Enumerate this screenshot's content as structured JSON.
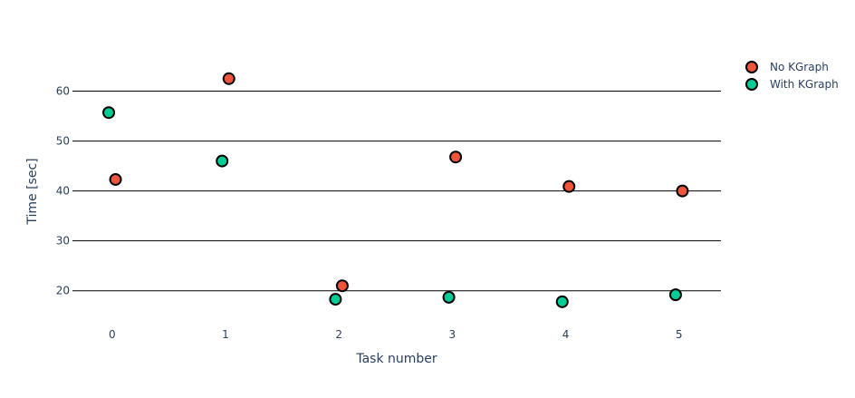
{
  "chart_data": {
    "type": "scatter",
    "xlabel": "Task number",
    "ylabel": "Time [sec]",
    "x_ticks": [
      "0",
      "1",
      "2",
      "3",
      "4",
      "5"
    ],
    "y_ticks": [
      "20",
      "30",
      "40",
      "50",
      "60"
    ],
    "xlim": [
      -0.35,
      5.37
    ],
    "ylim": [
      14.5,
      71
    ],
    "grid": true,
    "legend_position": "top-right",
    "series": [
      {
        "name": "No KGraph",
        "color": "#EF553B",
        "x": [
          0.03,
          1.03,
          2.03,
          3.03,
          4.03,
          5.03
        ],
        "y": [
          42.3,
          62.5,
          21.0,
          46.8,
          40.9,
          40.0
        ]
      },
      {
        "name": "With KGraph",
        "color": "#00CC96",
        "x": [
          -0.03,
          0.97,
          1.97,
          2.97,
          3.97,
          4.97
        ],
        "y": [
          55.7,
          46.0,
          18.3,
          18.7,
          17.8,
          19.2
        ]
      }
    ]
  }
}
